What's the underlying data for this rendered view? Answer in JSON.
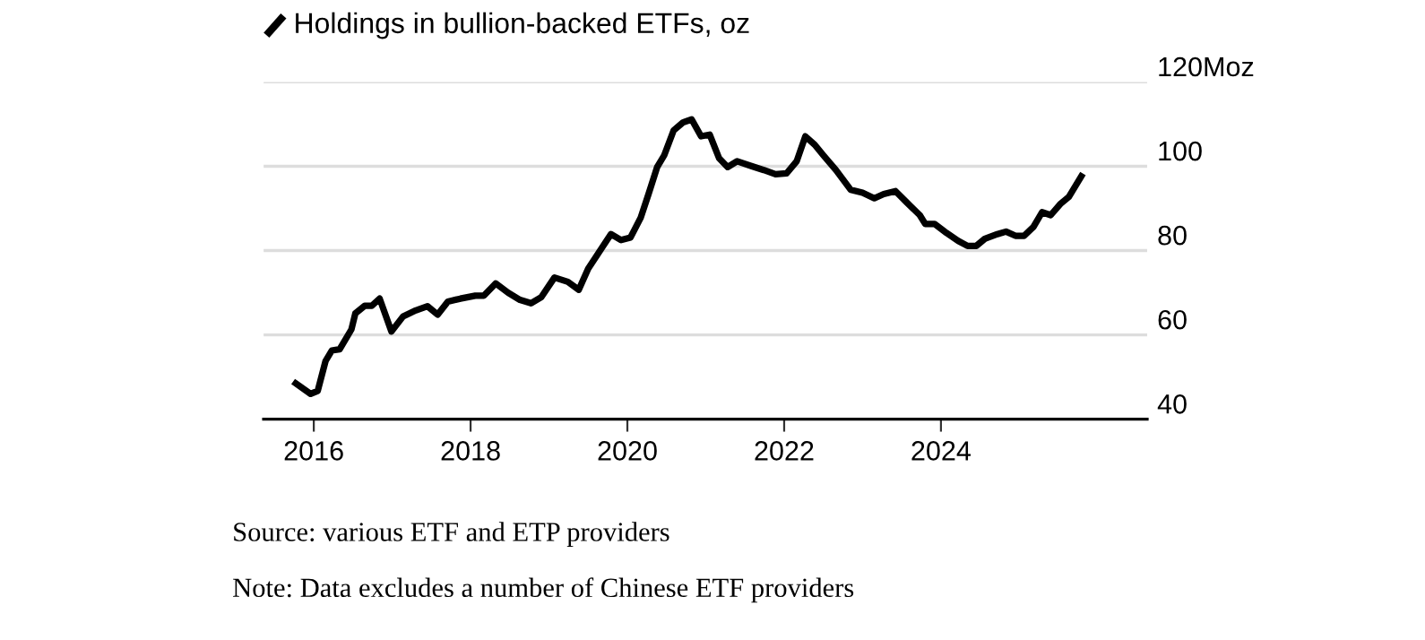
{
  "chart_data": {
    "type": "line",
    "title": "Holdings in bullion-backed ETFs, oz",
    "x": [
      2015.77,
      2015.96,
      2016.05,
      2016.15,
      2016.23,
      2016.33,
      2016.48,
      2016.53,
      2016.65,
      2016.74,
      2016.84,
      2016.99,
      2017.14,
      2017.3,
      2017.45,
      2017.58,
      2017.71,
      2017.87,
      2018.06,
      2018.17,
      2018.32,
      2018.48,
      2018.63,
      2018.77,
      2018.9,
      2019.07,
      2019.24,
      2019.38,
      2019.5,
      2019.66,
      2019.79,
      2019.92,
      2020.04,
      2020.17,
      2020.27,
      2020.38,
      2020.47,
      2020.59,
      2020.71,
      2020.82,
      2020.94,
      2021.05,
      2021.17,
      2021.28,
      2021.4,
      2021.59,
      2021.74,
      2021.89,
      2022.03,
      2022.16,
      2022.27,
      2022.39,
      2022.5,
      2022.66,
      2022.85,
      2023.0,
      2023.15,
      2023.27,
      2023.42,
      2023.57,
      2023.73,
      2023.8,
      2023.92,
      2024.07,
      2024.22,
      2024.34,
      2024.45,
      2024.56,
      2024.72,
      2024.83,
      2024.95,
      2025.06,
      2025.18,
      2025.29,
      2025.4,
      2025.52,
      2025.63,
      2025.79
    ],
    "series": [
      {
        "color": "#000000",
        "values": [
          48.5,
          46.0,
          46.7,
          53.8,
          56.3,
          56.6,
          61.3,
          65.1,
          66.9,
          66.9,
          68.6,
          60.8,
          64.4,
          65.8,
          66.8,
          64.8,
          67.9,
          68.6,
          69.3,
          69.3,
          72.2,
          70.0,
          68.3,
          67.5,
          68.9,
          73.6,
          72.6,
          70.7,
          75.7,
          80.2,
          83.9,
          82.5,
          83.1,
          87.8,
          93.4,
          99.8,
          102.6,
          108.5,
          110.4,
          111.1,
          107.1,
          107.5,
          101.9,
          99.8,
          101.2,
          100.0,
          99.1,
          98.1,
          98.3,
          101.2,
          107.1,
          105.1,
          102.6,
          99.1,
          94.4,
          93.7,
          92.4,
          93.4,
          94.1,
          91.3,
          88.4,
          86.3,
          86.3,
          84.2,
          82.3,
          81.1,
          81.1,
          82.8,
          83.9,
          84.5,
          83.5,
          83.5,
          85.6,
          89.1,
          88.4,
          91.0,
          92.7,
          97.6
        ]
      }
    ],
    "xlim": [
      2015.36,
      2026.63
    ],
    "xticks": [
      2016,
      2018,
      2020,
      2022,
      2024
    ],
    "ylim": [
      40,
      120
    ],
    "yticks": [
      40,
      60,
      80,
      100,
      {
        "value": 120,
        "label": "120Moz"
      }
    ],
    "grid": "y",
    "marker": "none",
    "line_style": "solid",
    "annotations": [
      "Source: various ETF and ETP providers",
      "Note: Data excludes a number of Chinese ETF providers"
    ]
  }
}
